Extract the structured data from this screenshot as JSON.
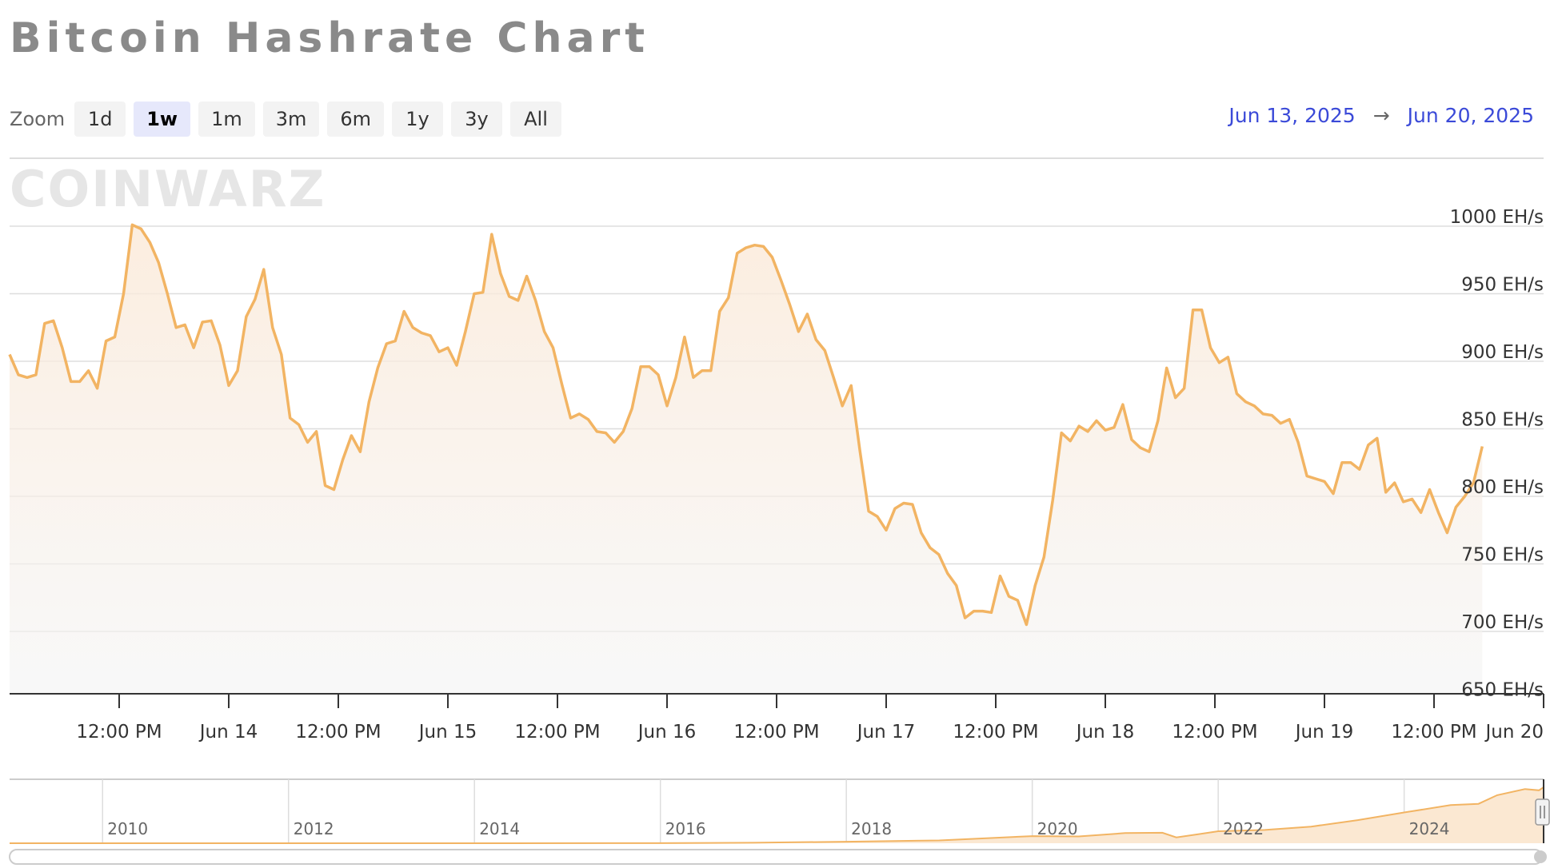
{
  "title": "Bitcoin Hashrate Chart",
  "watermark": "COINWARZ",
  "zoom": {
    "label": "Zoom",
    "buttons": [
      "1d",
      "1w",
      "1m",
      "3m",
      "6m",
      "1y",
      "3y",
      "All"
    ],
    "selected": "1w"
  },
  "range": {
    "from": "Jun 13, 2025",
    "arrow": "→",
    "to": "Jun 20, 2025"
  },
  "colors": {
    "series": "#f2b463",
    "accent": "#3b4ad8",
    "grid": "#dddddd"
  },
  "chart_data": {
    "type": "area",
    "title": "Bitcoin Hashrate Chart",
    "unit": "EH/s",
    "y_ticks": [
      "650 EH/s",
      "700 EH/s",
      "750 EH/s",
      "800 EH/s",
      "850 EH/s",
      "900 EH/s",
      "950 EH/s",
      "1000 EH/s"
    ],
    "ylim": [
      650,
      1000
    ],
    "x_ticks": [
      {
        "t": 0.5,
        "label": "12:00 PM"
      },
      {
        "t": 1.0,
        "label": "Jun 14"
      },
      {
        "t": 1.5,
        "label": "12:00 PM"
      },
      {
        "t": 2.0,
        "label": "Jun 15"
      },
      {
        "t": 2.5,
        "label": "12:00 PM"
      },
      {
        "t": 3.0,
        "label": "Jun 16"
      },
      {
        "t": 3.5,
        "label": "12:00 PM"
      },
      {
        "t": 4.0,
        "label": "Jun 17"
      },
      {
        "t": 4.5,
        "label": "12:00 PM"
      },
      {
        "t": 5.0,
        "label": "Jun 18"
      },
      {
        "t": 5.5,
        "label": "12:00 PM"
      },
      {
        "t": 6.0,
        "label": "Jun 19"
      },
      {
        "t": 6.5,
        "label": "12:00 PM"
      },
      {
        "t": 7.0,
        "label": "Jun 20"
      }
    ],
    "xlim": [
      0.0,
      7.0
    ],
    "grid": true,
    "series": [
      {
        "name": "",
        "points": [
          [
            0.0,
            905
          ],
          [
            0.04,
            890
          ],
          [
            0.08,
            888
          ],
          [
            0.12,
            890
          ],
          [
            0.16,
            928
          ],
          [
            0.2,
            930
          ],
          [
            0.24,
            910
          ],
          [
            0.28,
            885
          ],
          [
            0.32,
            885
          ],
          [
            0.36,
            893
          ],
          [
            0.4,
            880
          ],
          [
            0.44,
            915
          ],
          [
            0.48,
            918
          ],
          [
            0.52,
            950
          ],
          [
            0.56,
            1001
          ],
          [
            0.6,
            998
          ],
          [
            0.64,
            988
          ],
          [
            0.68,
            973
          ],
          [
            0.72,
            950
          ],
          [
            0.76,
            925
          ],
          [
            0.8,
            927
          ],
          [
            0.84,
            910
          ],
          [
            0.88,
            929
          ],
          [
            0.92,
            930
          ],
          [
            0.96,
            912
          ],
          [
            1.0,
            882
          ],
          [
            1.04,
            893
          ],
          [
            1.08,
            933
          ],
          [
            1.12,
            946
          ],
          [
            1.16,
            968
          ],
          [
            1.2,
            925
          ],
          [
            1.24,
            905
          ],
          [
            1.28,
            858
          ],
          [
            1.32,
            853
          ],
          [
            1.36,
            840
          ],
          [
            1.4,
            848
          ],
          [
            1.44,
            808
          ],
          [
            1.48,
            805
          ],
          [
            1.52,
            827
          ],
          [
            1.56,
            845
          ],
          [
            1.6,
            833
          ],
          [
            1.64,
            870
          ],
          [
            1.68,
            895
          ],
          [
            1.72,
            913
          ],
          [
            1.76,
            915
          ],
          [
            1.8,
            937
          ],
          [
            1.84,
            925
          ],
          [
            1.88,
            921
          ],
          [
            1.92,
            919
          ],
          [
            1.96,
            907
          ],
          [
            2.0,
            910
          ],
          [
            2.04,
            897
          ],
          [
            2.08,
            922
          ],
          [
            2.12,
            950
          ],
          [
            2.16,
            951
          ],
          [
            2.2,
            994
          ],
          [
            2.24,
            965
          ],
          [
            2.28,
            948
          ],
          [
            2.32,
            945
          ],
          [
            2.36,
            963
          ],
          [
            2.4,
            945
          ],
          [
            2.44,
            922
          ],
          [
            2.48,
            910
          ],
          [
            2.52,
            883
          ],
          [
            2.56,
            858
          ],
          [
            2.6,
            861
          ],
          [
            2.64,
            857
          ],
          [
            2.68,
            848
          ],
          [
            2.72,
            847
          ],
          [
            2.76,
            840
          ],
          [
            2.8,
            848
          ],
          [
            2.84,
            865
          ],
          [
            2.88,
            896
          ],
          [
            2.92,
            896
          ],
          [
            2.96,
            890
          ],
          [
            3.0,
            867
          ],
          [
            3.04,
            888
          ],
          [
            3.08,
            918
          ],
          [
            3.12,
            888
          ],
          [
            3.16,
            893
          ],
          [
            3.2,
            893
          ],
          [
            3.24,
            937
          ],
          [
            3.28,
            947
          ],
          [
            3.32,
            980
          ],
          [
            3.36,
            984
          ],
          [
            3.4,
            986
          ],
          [
            3.44,
            985
          ],
          [
            3.48,
            977
          ],
          [
            3.52,
            960
          ],
          [
            3.56,
            942
          ],
          [
            3.6,
            922
          ],
          [
            3.64,
            935
          ],
          [
            3.68,
            916
          ],
          [
            3.72,
            908
          ],
          [
            3.76,
            888
          ],
          [
            3.8,
            867
          ],
          [
            3.84,
            882
          ],
          [
            3.88,
            834
          ],
          [
            3.92,
            789
          ],
          [
            3.96,
            785
          ],
          [
            4.0,
            775
          ],
          [
            4.04,
            791
          ],
          [
            4.08,
            795
          ],
          [
            4.12,
            794
          ],
          [
            4.16,
            773
          ],
          [
            4.2,
            762
          ],
          [
            4.24,
            757
          ],
          [
            4.28,
            743
          ],
          [
            4.32,
            734
          ],
          [
            4.36,
            710
          ],
          [
            4.4,
            715
          ],
          [
            4.44,
            715
          ],
          [
            4.48,
            714
          ],
          [
            4.52,
            741
          ],
          [
            4.56,
            726
          ],
          [
            4.6,
            723
          ],
          [
            4.64,
            705
          ],
          [
            4.68,
            734
          ],
          [
            4.72,
            755
          ],
          [
            4.76,
            797
          ],
          [
            4.8,
            847
          ],
          [
            4.84,
            841
          ],
          [
            4.88,
            852
          ],
          [
            4.92,
            848
          ],
          [
            4.96,
            856
          ],
          [
            5.0,
            849
          ],
          [
            5.04,
            851
          ],
          [
            5.08,
            868
          ],
          [
            5.12,
            842
          ],
          [
            5.16,
            836
          ],
          [
            5.2,
            833
          ],
          [
            5.24,
            856
          ],
          [
            5.28,
            895
          ],
          [
            5.32,
            873
          ],
          [
            5.36,
            880
          ],
          [
            5.4,
            938
          ],
          [
            5.44,
            938
          ],
          [
            5.48,
            910
          ],
          [
            5.52,
            899
          ],
          [
            5.56,
            903
          ],
          [
            5.6,
            876
          ],
          [
            5.64,
            870
          ],
          [
            5.68,
            867
          ],
          [
            5.72,
            861
          ],
          [
            5.76,
            860
          ],
          [
            5.8,
            854
          ],
          [
            5.84,
            857
          ],
          [
            5.88,
            840
          ],
          [
            5.92,
            815
          ],
          [
            5.96,
            813
          ],
          [
            6.0,
            811
          ],
          [
            6.04,
            802
          ],
          [
            6.08,
            825
          ],
          [
            6.12,
            825
          ],
          [
            6.16,
            820
          ],
          [
            6.2,
            838
          ],
          [
            6.24,
            843
          ],
          [
            6.28,
            803
          ],
          [
            6.32,
            810
          ],
          [
            6.36,
            796
          ],
          [
            6.4,
            798
          ],
          [
            6.44,
            788
          ],
          [
            6.48,
            805
          ],
          [
            6.52,
            788
          ],
          [
            6.56,
            773
          ],
          [
            6.6,
            792
          ],
          [
            6.64,
            800
          ],
          [
            6.68,
            810
          ],
          [
            6.72,
            837
          ]
        ]
      }
    ],
    "navigator": {
      "years": [
        "2010",
        "2012",
        "2014",
        "2016",
        "2018",
        "2020",
        "2022",
        "2024"
      ],
      "year_starts": [
        2010,
        2012,
        2014,
        2016,
        2018,
        2020,
        2022,
        2024
      ],
      "xlim": [
        2009.0,
        2025.5
      ],
      "ylim": [
        0,
        1000
      ],
      "points": [
        [
          2009.0,
          0
        ],
        [
          2012.0,
          0
        ],
        [
          2014.0,
          0.3
        ],
        [
          2016.0,
          1
        ],
        [
          2017.0,
          8
        ],
        [
          2018.0,
          25
        ],
        [
          2019.0,
          45
        ],
        [
          2020.0,
          115
        ],
        [
          2020.5,
          110
        ],
        [
          2021.0,
          165
        ],
        [
          2021.4,
          170
        ],
        [
          2021.55,
          95
        ],
        [
          2021.8,
          150
        ],
        [
          2022.0,
          195
        ],
        [
          2022.5,
          215
        ],
        [
          2023.0,
          270
        ],
        [
          2023.5,
          375
        ],
        [
          2024.0,
          500
        ],
        [
          2024.5,
          620
        ],
        [
          2024.8,
          640
        ],
        [
          2025.0,
          780
        ],
        [
          2025.3,
          880
        ],
        [
          2025.45,
          860
        ],
        [
          2025.5,
          910
        ]
      ]
    }
  }
}
